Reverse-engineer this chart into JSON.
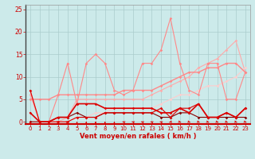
{
  "title": "",
  "xlabel": "Vent moyen/en rafales ( km/h )",
  "bg_color": "#cceaea",
  "grid_color": "#aacccc",
  "x_ticks": [
    0,
    1,
    2,
    3,
    4,
    5,
    6,
    7,
    8,
    9,
    10,
    11,
    12,
    13,
    14,
    15,
    16,
    17,
    18,
    19,
    20,
    21,
    22,
    23
  ],
  "y_ticks": [
    0,
    5,
    10,
    15,
    20,
    25
  ],
  "ylim": [
    -0.5,
    26
  ],
  "xlim": [
    -0.5,
    23.5
  ],
  "series": [
    {
      "x": [
        0,
        1,
        2,
        3,
        4,
        5,
        6,
        7,
        8,
        9,
        10,
        11,
        12,
        13,
        14,
        15,
        16,
        17,
        18,
        19,
        20,
        21,
        22,
        23
      ],
      "y": [
        7,
        0,
        0,
        0,
        0,
        1,
        1,
        1,
        2,
        2,
        2,
        2,
        2,
        2,
        3,
        1,
        3,
        3,
        4,
        1,
        1,
        2,
        1,
        3
      ],
      "color": "#dd0000",
      "lw": 0.8,
      "marker": "D",
      "ms": 1.8,
      "zorder": 5
    },
    {
      "x": [
        0,
        1,
        2,
        3,
        4,
        5,
        6,
        7,
        8,
        9,
        10,
        11,
        12,
        13,
        14,
        15,
        16,
        17,
        18,
        19,
        20,
        21,
        22,
        23
      ],
      "y": [
        2,
        0,
        0,
        1,
        1,
        4,
        4,
        4,
        3,
        3,
        3,
        3,
        3,
        3,
        2,
        2,
        3,
        2,
        4,
        1,
        1,
        2,
        1,
        3
      ],
      "color": "#dd0000",
      "lw": 1.2,
      "marker": "D",
      "ms": 1.8,
      "zorder": 5
    },
    {
      "x": [
        0,
        1,
        2,
        3,
        4,
        5,
        6,
        7,
        8,
        9,
        10,
        11,
        12,
        13,
        14,
        15,
        16,
        17,
        18,
        19,
        20,
        21,
        22,
        23
      ],
      "y": [
        0,
        0,
        0,
        1,
        1,
        2,
        1,
        1,
        2,
        2,
        2,
        2,
        2,
        2,
        1,
        1,
        2,
        2,
        1,
        1,
        1,
        1,
        1,
        1
      ],
      "color": "#880000",
      "lw": 0.8,
      "marker": "D",
      "ms": 1.8,
      "zorder": 4
    },
    {
      "x": [
        0,
        1,
        2,
        3,
        4,
        5,
        6,
        7,
        8,
        9,
        10,
        11,
        12,
        13,
        14,
        15,
        16,
        17,
        18,
        19,
        20,
        21,
        22,
        23
      ],
      "y": [
        5,
        5,
        5,
        6,
        6,
        6,
        6,
        6,
        6,
        6,
        7,
        7,
        7,
        7,
        8,
        9,
        10,
        11,
        11,
        12,
        12,
        13,
        13,
        11
      ],
      "color": "#ff8888",
      "lw": 1.0,
      "marker": "D",
      "ms": 1.8,
      "zorder": 3
    },
    {
      "x": [
        0,
        1,
        2,
        3,
        4,
        5,
        6,
        7,
        8,
        9,
        10,
        11,
        12,
        13,
        14,
        15,
        16,
        17,
        18,
        19,
        20,
        21,
        22,
        23
      ],
      "y": [
        7,
        0,
        0,
        6,
        13,
        4,
        13,
        15,
        13,
        7,
        6,
        7,
        13,
        13,
        16,
        23,
        13,
        7,
        6,
        13,
        13,
        5,
        5,
        11
      ],
      "color": "#ff8888",
      "lw": 0.8,
      "marker": "D",
      "ms": 1.8,
      "zorder": 3
    },
    {
      "x": [
        0,
        1,
        2,
        3,
        4,
        5,
        6,
        7,
        8,
        9,
        10,
        11,
        12,
        13,
        14,
        15,
        16,
        17,
        18,
        19,
        20,
        21,
        22,
        23
      ],
      "y": [
        6,
        0,
        0,
        0,
        1,
        5,
        5,
        5,
        5,
        5,
        5,
        5,
        5,
        6,
        7,
        8,
        9,
        10,
        12,
        13,
        14,
        16,
        18,
        11
      ],
      "color": "#ffaaaa",
      "lw": 0.8,
      "marker": "D",
      "ms": 1.8,
      "zorder": 2
    },
    {
      "x": [
        0,
        1,
        2,
        3,
        4,
        5,
        6,
        7,
        8,
        9,
        10,
        11,
        12,
        13,
        14,
        15,
        16,
        17,
        18,
        19,
        20,
        21,
        22,
        23
      ],
      "y": [
        0,
        0,
        0,
        0,
        0,
        1,
        1,
        2,
        2,
        3,
        3,
        3,
        3,
        3,
        4,
        5,
        6,
        6,
        7,
        8,
        8,
        9,
        10,
        12
      ],
      "color": "#ffcccc",
      "lw": 0.8,
      "marker": "D",
      "ms": 1.8,
      "zorder": 2
    }
  ],
  "arrow_color": "#dd0000",
  "arrow_angles": [
    0,
    0,
    0,
    45,
    45,
    0,
    0,
    0,
    0,
    0,
    315,
    315,
    315,
    315,
    315,
    225,
    135,
    135,
    135,
    135,
    135,
    135,
    135,
    135
  ]
}
